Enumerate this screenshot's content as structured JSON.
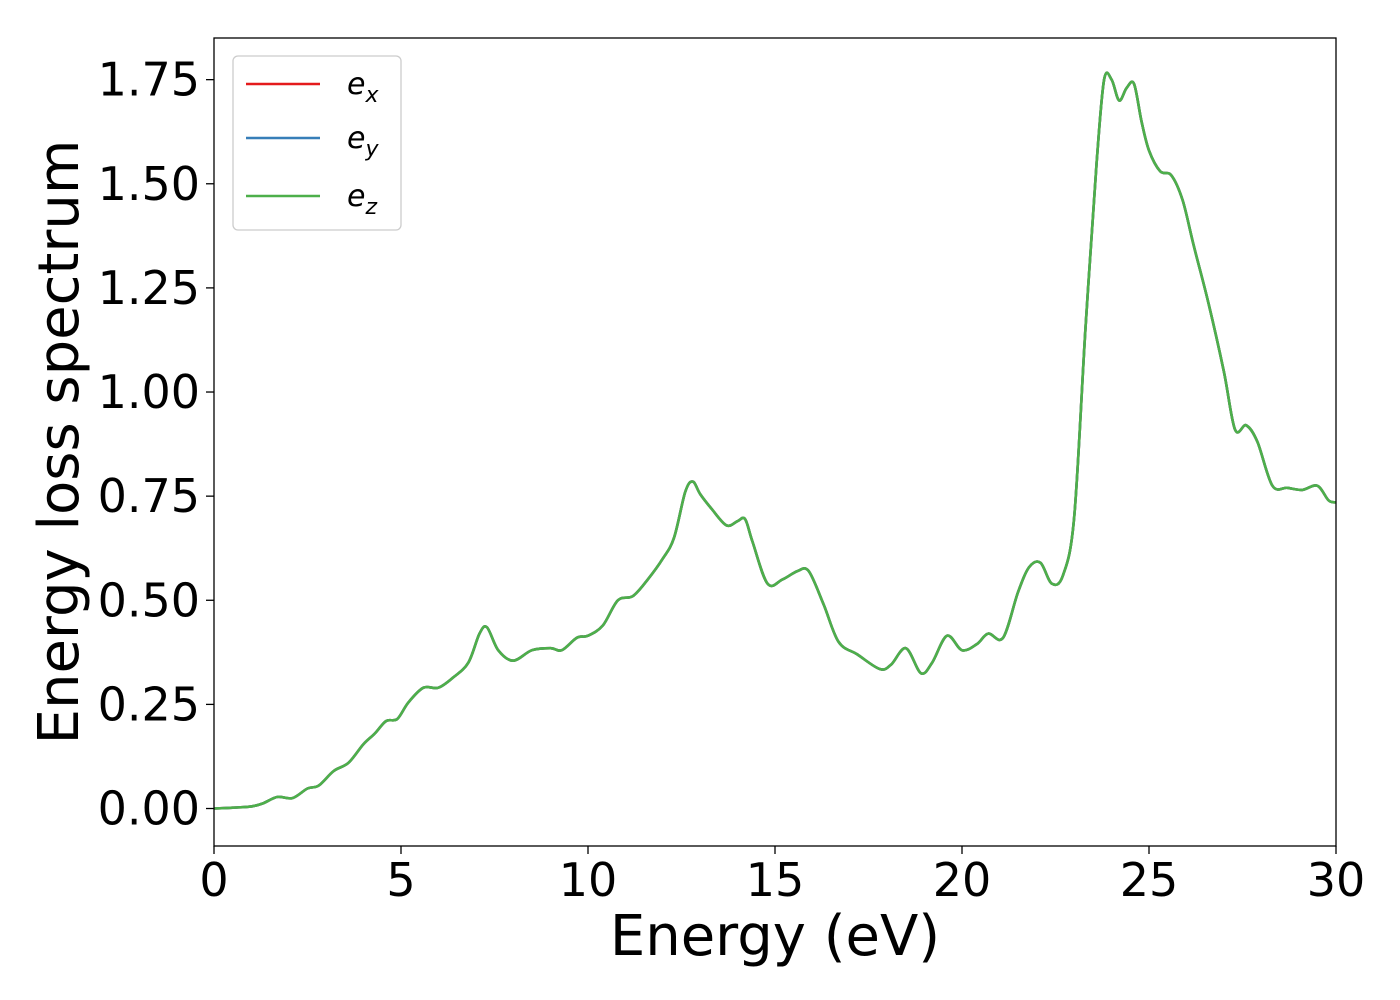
{
  "chart_data": {
    "type": "line",
    "title": "",
    "xlabel": "Energy (eV)",
    "ylabel": "Energy loss spectrum",
    "xlim": [
      0,
      30
    ],
    "ylim": [
      -0.09,
      1.85
    ],
    "xticks": [
      0,
      5,
      10,
      15,
      20,
      25,
      30
    ],
    "xtick_labels": [
      "0",
      "5",
      "10",
      "15",
      "20",
      "25",
      "30"
    ],
    "yticks": [
      0.0,
      0.25,
      0.5,
      0.75,
      1.0,
      1.25,
      1.5,
      1.75
    ],
    "ytick_labels": [
      "0.00",
      "0.25",
      "0.50",
      "0.75",
      "1.00",
      "1.25",
      "1.50",
      "1.75"
    ],
    "grid": false,
    "legend_position": "top-left",
    "series": [
      {
        "name": "e",
        "subscript": "x",
        "color": "#e41a1c",
        "ref": "e_z"
      },
      {
        "name": "e",
        "subscript": "y",
        "color": "#377eb8",
        "ref": "e_z"
      },
      {
        "name": "e",
        "subscript": "z",
        "color": "#4daf4a"
      }
    ],
    "x": [
      0,
      0.5,
      1.0,
      1.3,
      1.7,
      2.1,
      2.5,
      2.8,
      3.2,
      3.6,
      4.0,
      4.3,
      4.6,
      4.9,
      5.2,
      5.6,
      6.0,
      6.4,
      6.8,
      7.1,
      7.3,
      7.6,
      8.0,
      8.5,
      9.0,
      9.3,
      9.7,
      10.0,
      10.4,
      10.8,
      11.2,
      11.6,
      12.0,
      12.3,
      12.6,
      12.8,
      13.0,
      13.3,
      13.7,
      14.0,
      14.2,
      14.4,
      14.8,
      15.2,
      15.6,
      15.9,
      16.3,
      16.7,
      17.2,
      17.8,
      18.1,
      18.5,
      18.9,
      19.2,
      19.6,
      20.0,
      20.4,
      20.7,
      21.1,
      21.5,
      21.8,
      22.1,
      22.4,
      22.7,
      23.0,
      23.3,
      23.6,
      23.8,
      24.0,
      24.2,
      24.4,
      24.6,
      24.8,
      25.0,
      25.3,
      25.6,
      25.9,
      26.2,
      26.6,
      27.0,
      27.3,
      27.6,
      27.9,
      28.3,
      28.7,
      29.1,
      29.5,
      29.8,
      30.0
    ],
    "values": [
      0.0,
      0.002,
      0.005,
      0.012,
      0.028,
      0.025,
      0.048,
      0.055,
      0.09,
      0.11,
      0.155,
      0.18,
      0.21,
      0.215,
      0.255,
      0.29,
      0.29,
      0.315,
      0.35,
      0.42,
      0.435,
      0.38,
      0.355,
      0.38,
      0.385,
      0.38,
      0.41,
      0.415,
      0.44,
      0.5,
      0.51,
      0.55,
      0.6,
      0.65,
      0.76,
      0.785,
      0.755,
      0.72,
      0.68,
      0.69,
      0.695,
      0.64,
      0.54,
      0.55,
      0.57,
      0.57,
      0.49,
      0.4,
      0.37,
      0.335,
      0.345,
      0.385,
      0.325,
      0.35,
      0.415,
      0.38,
      0.395,
      0.42,
      0.41,
      0.52,
      0.58,
      0.59,
      0.54,
      0.56,
      0.7,
      1.15,
      1.55,
      1.75,
      1.75,
      1.7,
      1.73,
      1.74,
      1.65,
      1.58,
      1.53,
      1.52,
      1.46,
      1.35,
      1.21,
      1.05,
      0.91,
      0.92,
      0.88,
      0.775,
      0.77,
      0.765,
      0.775,
      0.74,
      0.735
    ]
  }
}
